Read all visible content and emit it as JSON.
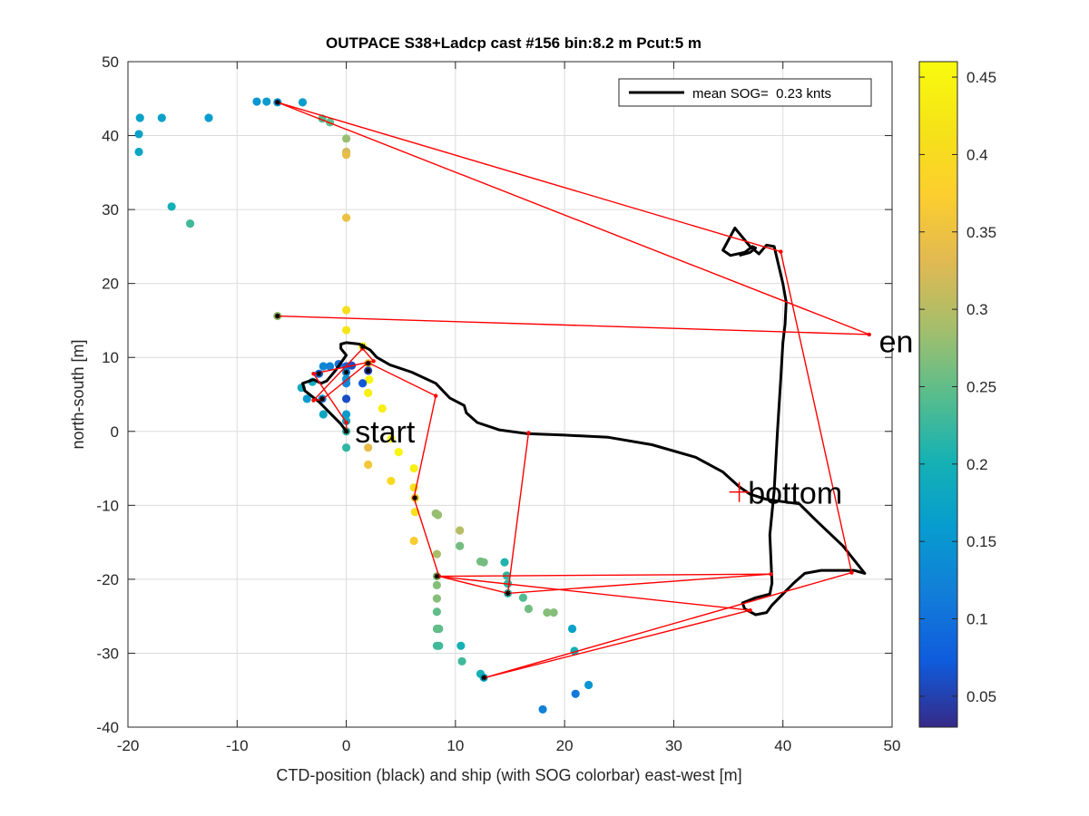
{
  "chart_data": {
    "type": "scatter",
    "title": "OUTPACE S38+Ladcp cast #156 bin:8.2 m  Pcut:5 m",
    "xlabel": "CTD-position (black) and ship (with SOG colorbar) east-west [m]",
    "ylabel": "north-south [m]",
    "xlim": [
      -20,
      50
    ],
    "ylim": [
      -40,
      50
    ],
    "xticks": [
      -20,
      -10,
      0,
      10,
      20,
      30,
      40,
      50
    ],
    "yticks": [
      -40,
      -30,
      -20,
      -10,
      0,
      10,
      20,
      30,
      40,
      50
    ],
    "grid": true,
    "legend": {
      "position": "top-right",
      "entries": [
        "mean SOG=  0.23 knts"
      ]
    },
    "annotations": [
      {
        "text": "start",
        "x": 0.8,
        "y": 0
      },
      {
        "text": "bottom",
        "x": 36.8,
        "y": -8.3
      },
      {
        "text": "en",
        "x": 48.8,
        "y": 12.2
      }
    ],
    "colorbar": {
      "range": [
        0.03,
        0.46
      ],
      "ticks": [
        0.05,
        0.1,
        0.15,
        0.2,
        0.25,
        0.3,
        0.35,
        0.4,
        0.45
      ]
    },
    "series": [
      {
        "name": "mean SOG=  0.23 knts",
        "type": "line",
        "color": "#000000",
        "x": [
          0,
          -0.5,
          -1.5,
          -2.5,
          -3.8,
          -4,
          -3,
          -2.3,
          -1.8,
          -1,
          0,
          -0.5,
          -0.5,
          0,
          1.2,
          2.2,
          2.8,
          4,
          6,
          8.2,
          9.5,
          10.8,
          11,
          12,
          14,
          16.5,
          20,
          24,
          28,
          32,
          34.5,
          36,
          37,
          38.5,
          40,
          41.5,
          43,
          45.5,
          47.5,
          46.5,
          45,
          43.5,
          42,
          41,
          40,
          39,
          38.5,
          37.5,
          36.5,
          36.3,
          37.5,
          38.8,
          39,
          38.8,
          39.2,
          39.5,
          39.8,
          40,
          40.2,
          40.3,
          40,
          39.6,
          39.2,
          38.5,
          37.8,
          37,
          35.6,
          34.5,
          35.2,
          36.5,
          37.2,
          37.5,
          37,
          36
        ],
        "y": [
          0,
          1,
          2.5,
          4,
          5.5,
          6.5,
          7,
          6.5,
          6.8,
          8.2,
          10.3,
          11.2,
          11.8,
          12,
          11.8,
          11,
          10,
          9,
          8,
          6.5,
          4.5,
          3.5,
          2.5,
          1.2,
          0.2,
          -0.3,
          -0.5,
          -0.8,
          -1.8,
          -3.5,
          -5.5,
          -7.5,
          -8.5,
          -9.2,
          -9.5,
          -9.8,
          -12,
          -15.5,
          -19.2,
          -18.8,
          -18.8,
          -18.8,
          -19.2,
          -20.5,
          -22,
          -23.5,
          -24.5,
          -24.8,
          -24,
          -23.2,
          -22.5,
          -22,
          -20.5,
          -14,
          -8,
          0,
          7,
          12,
          14.5,
          17.5,
          20,
          22.5,
          25,
          25.2,
          24,
          25,
          27.5,
          24.5,
          23.8,
          24.2,
          25,
          24.8,
          24.2,
          23.8
        ]
      },
      {
        "name": "",
        "type": "line",
        "color": "#ff0000",
        "x": [
          0,
          0,
          -3,
          2.5,
          1.5,
          -3,
          -2.2,
          2,
          8.2,
          6.2,
          8.5,
          14.8,
          16.7,
          14.8,
          38.9,
          8.3,
          37,
          12.7,
          46.3,
          39.8,
          -6.3,
          47.9,
          -6.3
        ],
        "y": [
          0,
          1.2,
          7.8,
          9.5,
          11.2,
          4.2,
          4.3,
          9.3,
          4.8,
          -9,
          -19.6,
          -21.9,
          -0.2,
          -21.9,
          -19.3,
          -19.6,
          -24.2,
          -33.3,
          -19.1,
          24.3,
          44.5,
          13.1,
          15.6
        ]
      },
      {
        "name": "",
        "type": "scatter",
        "points": [
          {
            "x": -8.2,
            "y": 44.6,
            "v": 0.15
          },
          {
            "x": -7.3,
            "y": 44.6,
            "v": 0.16
          },
          {
            "x": -6.3,
            "y": 44.5,
            "v": 0.15,
            "ctd": true
          },
          {
            "x": -4,
            "y": 44.5,
            "v": 0.16
          },
          {
            "x": -18.9,
            "y": 42.4,
            "v": 0.17
          },
          {
            "x": -16.9,
            "y": 42.4,
            "v": 0.17
          },
          {
            "x": -12.6,
            "y": 42.4,
            "v": 0.16
          },
          {
            "x": -19,
            "y": 40.2,
            "v": 0.17
          },
          {
            "x": -19,
            "y": 37.8,
            "v": 0.18
          },
          {
            "x": -2.2,
            "y": 42.3,
            "v": 0.24
          },
          {
            "x": -1.5,
            "y": 41.8,
            "v": 0.25
          },
          {
            "x": 0,
            "y": 39.6,
            "v": 0.28
          },
          {
            "x": 0,
            "y": 37.8,
            "v": 0.32
          },
          {
            "x": 0,
            "y": 37.4,
            "v": 0.34
          },
          {
            "x": -16,
            "y": 30.4,
            "v": 0.2
          },
          {
            "x": -14.3,
            "y": 28.1,
            "v": 0.23
          },
          {
            "x": 0,
            "y": 28.9,
            "v": 0.35
          },
          {
            "x": -6.3,
            "y": 15.6,
            "v": 0.28,
            "ctd": true
          },
          {
            "x": 0,
            "y": 16.4,
            "v": 0.41
          },
          {
            "x": 0,
            "y": 13.7,
            "v": 0.42
          },
          {
            "x": 1.5,
            "y": 11.5,
            "v": 0.44,
            "ctd": true
          },
          {
            "x": -2.1,
            "y": 8.8,
            "v": 0.13
          },
          {
            "x": -1.5,
            "y": 8.8,
            "v": 0.12
          },
          {
            "x": -0.7,
            "y": 9.1,
            "v": 0.1
          },
          {
            "x": 0,
            "y": 8.8,
            "v": 0.08
          },
          {
            "x": 0.5,
            "y": 8.9,
            "v": 0.06
          },
          {
            "x": 0,
            "y": 8,
            "v": 0.13,
            "ctd": true
          },
          {
            "x": 0,
            "y": 7.1,
            "v": 0.15
          },
          {
            "x": 0,
            "y": 6.5,
            "v": 0.13
          },
          {
            "x": 2,
            "y": 9.2,
            "v": 0.36,
            "ctd": true
          },
          {
            "x": 2,
            "y": 8.2,
            "v": 0.05,
            "ctd": true
          },
          {
            "x": 2.1,
            "y": 7,
            "v": 0.45
          },
          {
            "x": 1.5,
            "y": 6.5,
            "v": 0.07
          },
          {
            "x": -2.5,
            "y": 7.8,
            "v": 0.09,
            "ctd": true
          },
          {
            "x": -3.1,
            "y": 6.7,
            "v": 0.19
          },
          {
            "x": -4.1,
            "y": 5.9,
            "v": 0.19
          },
          {
            "x": -3.6,
            "y": 4.4,
            "v": 0.16
          },
          {
            "x": -2.2,
            "y": 4.4,
            "v": 0.13,
            "ctd": true
          },
          {
            "x": 0,
            "y": 4.4,
            "v": 0.06
          },
          {
            "x": 2,
            "y": 5.2,
            "v": 0.44
          },
          {
            "x": 3.3,
            "y": 3.1,
            "v": 0.44
          },
          {
            "x": -2.1,
            "y": 2.3,
            "v": 0.18
          },
          {
            "x": 0,
            "y": 2.3,
            "v": 0.16
          },
          {
            "x": 0,
            "y": 1.4,
            "v": 0.18
          },
          {
            "x": 0,
            "y": 0,
            "v": 0.22,
            "ctd": true
          },
          {
            "x": 4.1,
            "y": -1,
            "v": 0.45
          },
          {
            "x": 4.8,
            "y": -2.8,
            "v": 0.45
          },
          {
            "x": 0,
            "y": -2.2,
            "v": 0.22
          },
          {
            "x": 2,
            "y": -2.2,
            "v": 0.34
          },
          {
            "x": 2,
            "y": -4.5,
            "v": 0.36
          },
          {
            "x": 6.2,
            "y": -5,
            "v": 0.44
          },
          {
            "x": 4.1,
            "y": -6.7,
            "v": 0.4
          },
          {
            "x": 6.2,
            "y": -7.6,
            "v": 0.41
          },
          {
            "x": 6.3,
            "y": -9,
            "v": 0.38,
            "ctd": true
          },
          {
            "x": 6.3,
            "y": -10.9,
            "v": 0.41
          },
          {
            "x": 8.2,
            "y": -11.1,
            "v": 0.28
          },
          {
            "x": 8.4,
            "y": -11.3,
            "v": 0.28
          },
          {
            "x": 10.4,
            "y": -13.4,
            "v": 0.3
          },
          {
            "x": 6.2,
            "y": -14.8,
            "v": 0.37
          },
          {
            "x": 10.4,
            "y": -15.5,
            "v": 0.26
          },
          {
            "x": 8.3,
            "y": -16.6,
            "v": 0.29
          },
          {
            "x": 12.3,
            "y": -17.6,
            "v": 0.26
          },
          {
            "x": 12.6,
            "y": -17.7,
            "v": 0.26
          },
          {
            "x": 14.5,
            "y": -17.7,
            "v": 0.21
          },
          {
            "x": 14.7,
            "y": -19.5,
            "v": 0.22
          },
          {
            "x": 8.3,
            "y": -19.6,
            "v": 0.27,
            "ctd": true
          },
          {
            "x": 14.8,
            "y": -20.6,
            "v": 0.22
          },
          {
            "x": 8.3,
            "y": -20.8,
            "v": 0.27
          },
          {
            "x": 14.8,
            "y": -21.9,
            "v": 0.22,
            "ctd": true
          },
          {
            "x": 16.2,
            "y": -22.5,
            "v": 0.24
          },
          {
            "x": 8.3,
            "y": -22.6,
            "v": 0.27
          },
          {
            "x": 16.7,
            "y": -24,
            "v": 0.26
          },
          {
            "x": 18.4,
            "y": -24.5,
            "v": 0.27
          },
          {
            "x": 19,
            "y": -24.5,
            "v": 0.27
          },
          {
            "x": 8.3,
            "y": -24.4,
            "v": 0.25
          },
          {
            "x": 8.3,
            "y": -26.7,
            "v": 0.25
          },
          {
            "x": 8.5,
            "y": -26.7,
            "v": 0.25
          },
          {
            "x": 20.7,
            "y": -26.7,
            "v": 0.17
          },
          {
            "x": 8.3,
            "y": -29,
            "v": 0.23
          },
          {
            "x": 8.5,
            "y": -29,
            "v": 0.23
          },
          {
            "x": 10.5,
            "y": -29,
            "v": 0.2
          },
          {
            "x": 20.9,
            "y": -29.7,
            "v": 0.2
          },
          {
            "x": 10.6,
            "y": -31.1,
            "v": 0.23
          },
          {
            "x": 12.3,
            "y": -32.8,
            "v": 0.2
          },
          {
            "x": 12.6,
            "y": -33.3,
            "v": 0.18,
            "ctd": true
          },
          {
            "x": 22.2,
            "y": -34.3,
            "v": 0.15
          },
          {
            "x": 21,
            "y": -35.5,
            "v": 0.11
          },
          {
            "x": 18,
            "y": -37.6,
            "v": 0.12
          }
        ]
      }
    ]
  }
}
